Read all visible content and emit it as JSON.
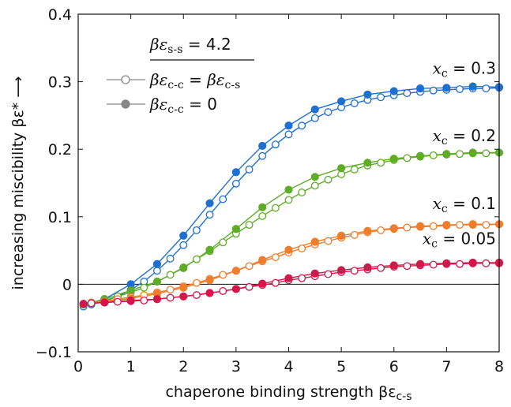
{
  "chart_data": {
    "type": "line",
    "xlabel": "chaperone binding strength βε",
    "xlabel_sub": "c-s",
    "ylabel": "increasing miscibility βε* ⟶",
    "xlim": [
      0,
      8
    ],
    "ylim": [
      -0.1,
      0.4
    ],
    "x_ticks": [
      0,
      1,
      2,
      3,
      4,
      5,
      6,
      7,
      8
    ],
    "x_tick_labels": [
      "0",
      "1",
      "2",
      "3",
      "4",
      "5",
      "6",
      "7",
      "8"
    ],
    "y_ticks": [
      -0.1,
      0,
      0.1,
      0.2,
      0.3,
      0.4
    ],
    "y_tick_labels": [
      "−0.1",
      "0",
      "0.1",
      "0.2",
      "0.3",
      "0.4"
    ],
    "reference_line_y": 0,
    "legend": {
      "position": "top-left",
      "title": "βε",
      "title_sub": "s-s",
      "title_value": " = 4.2",
      "entries": [
        {
          "marker": "open",
          "text": "βε",
          "sub": "c-c",
          "rest": " = βε",
          "sub2": "c-s"
        },
        {
          "marker": "filled",
          "text": "βε",
          "sub": "c-c",
          "rest": " = 0",
          "sub2": ""
        }
      ]
    },
    "series": [
      {
        "name": "x_c = 0.3",
        "label_var": "x",
        "label_sub": "c",
        "label_value": " = 0.3",
        "color": "#1f6fd1",
        "open": {
          "x": [
            0.1,
            0.25,
            0.5,
            0.75,
            1.0,
            1.25,
            1.5,
            1.75,
            2.0,
            2.25,
            2.5,
            2.75,
            3.0,
            3.25,
            3.5,
            3.75,
            4.0,
            4.25,
            4.5,
            4.75,
            5.0,
            5.25,
            5.5,
            5.75,
            6.0,
            6.25,
            6.5,
            6.75,
            7.0,
            7.25,
            7.5,
            7.75,
            8.0
          ],
          "y": [
            -0.033,
            -0.03,
            -0.025,
            -0.018,
            -0.008,
            0.004,
            0.02,
            0.038,
            0.058,
            0.08,
            0.103,
            0.126,
            0.149,
            0.17,
            0.19,
            0.207,
            0.222,
            0.235,
            0.246,
            0.255,
            0.262,
            0.268,
            0.273,
            0.277,
            0.28,
            0.283,
            0.285,
            0.287,
            0.288,
            0.289,
            0.29,
            0.29,
            0.291
          ]
        },
        "filled": {
          "x": [
            0.1,
            0.5,
            1.0,
            1.5,
            2.0,
            2.5,
            3.0,
            3.5,
            4.0,
            4.5,
            5.0,
            5.5,
            6.0,
            6.5,
            7.0,
            7.5,
            8.0
          ],
          "y": [
            -0.03,
            -0.022,
            0.0,
            0.03,
            0.072,
            0.12,
            0.166,
            0.205,
            0.235,
            0.259,
            0.271,
            0.281,
            0.286,
            0.29,
            0.291,
            0.293,
            0.292
          ]
        }
      },
      {
        "name": "x_c = 0.2",
        "label_var": "x",
        "label_sub": "c",
        "label_value": " = 0.2",
        "color": "#5fac27",
        "open": {
          "x": [
            0.1,
            0.25,
            0.5,
            0.75,
            1.0,
            1.25,
            1.5,
            1.75,
            2.0,
            2.25,
            2.5,
            2.75,
            3.0,
            3.25,
            3.5,
            3.75,
            4.0,
            4.25,
            4.5,
            4.75,
            5.0,
            5.25,
            5.5,
            5.75,
            6.0,
            6.25,
            6.5,
            6.75,
            7.0,
            7.25,
            7.5,
            7.75,
            8.0
          ],
          "y": [
            -0.03,
            -0.028,
            -0.024,
            -0.018,
            -0.012,
            -0.005,
            0.004,
            0.014,
            0.025,
            0.037,
            0.049,
            0.062,
            0.075,
            0.088,
            0.101,
            0.113,
            0.125,
            0.136,
            0.146,
            0.155,
            0.163,
            0.17,
            0.176,
            0.18,
            0.184,
            0.187,
            0.189,
            0.191,
            0.192,
            0.193,
            0.194,
            0.194,
            0.195
          ]
        },
        "filled": {
          "x": [
            0.1,
            0.5,
            1.0,
            1.5,
            2.0,
            2.5,
            3.0,
            3.5,
            4.0,
            4.5,
            5.0,
            5.5,
            6.0,
            6.5,
            7.0,
            7.5,
            8.0
          ],
          "y": [
            -0.03,
            -0.022,
            -0.009,
            0.004,
            0.024,
            0.051,
            0.082,
            0.114,
            0.14,
            0.159,
            0.172,
            0.18,
            0.186,
            0.19,
            0.193,
            0.195,
            0.195
          ]
        }
      },
      {
        "name": "x_c = 0.1",
        "label_var": "x",
        "label_sub": "c",
        "label_value": " = 0.1",
        "color": "#ef7d2c",
        "open": {
          "x": [
            0.1,
            0.25,
            0.5,
            0.75,
            1.0,
            1.25,
            1.5,
            1.75,
            2.0,
            2.25,
            2.5,
            2.75,
            3.0,
            3.25,
            3.5,
            3.75,
            4.0,
            4.25,
            4.5,
            4.75,
            5.0,
            5.25,
            5.5,
            5.75,
            6.0,
            6.25,
            6.5,
            6.75,
            7.0,
            7.25,
            7.5,
            7.75,
            8.0
          ],
          "y": [
            -0.029,
            -0.027,
            -0.025,
            -0.022,
            -0.019,
            -0.016,
            -0.012,
            -0.008,
            -0.003,
            0.002,
            0.008,
            0.014,
            0.02,
            0.027,
            0.034,
            0.04,
            0.047,
            0.053,
            0.059,
            0.064,
            0.069,
            0.073,
            0.077,
            0.08,
            0.082,
            0.084,
            0.085,
            0.086,
            0.087,
            0.088,
            0.088,
            0.088,
            0.089
          ]
        },
        "filled": {
          "x": [
            0.1,
            0.5,
            1.0,
            1.5,
            2.0,
            2.5,
            3.0,
            3.5,
            4.0,
            4.5,
            5.0,
            5.5,
            6.0,
            6.5,
            7.0,
            7.5,
            8.0
          ],
          "y": [
            -0.029,
            -0.026,
            -0.021,
            -0.014,
            -0.005,
            0.006,
            0.02,
            0.036,
            0.051,
            0.063,
            0.072,
            0.079,
            0.083,
            0.086,
            0.088,
            0.089,
            0.089
          ]
        }
      },
      {
        "name": "x_c = 0.05",
        "label_var": "x",
        "label_sub": "c",
        "label_value": " = 0.05",
        "color": "#d4174a",
        "open": {
          "x": [
            0.1,
            0.25,
            0.5,
            0.75,
            1.0,
            1.25,
            1.5,
            1.75,
            2.0,
            2.25,
            2.5,
            2.75,
            3.0,
            3.25,
            3.5,
            3.75,
            4.0,
            4.25,
            4.5,
            4.75,
            5.0,
            5.25,
            5.5,
            5.75,
            6.0,
            6.25,
            6.5,
            6.75,
            7.0,
            7.25,
            7.5,
            7.75,
            8.0
          ],
          "y": [
            -0.029,
            -0.028,
            -0.027,
            -0.026,
            -0.025,
            -0.024,
            -0.022,
            -0.02,
            -0.018,
            -0.016,
            -0.013,
            -0.01,
            -0.007,
            -0.004,
            -0.001,
            0.002,
            0.006,
            0.009,
            0.012,
            0.015,
            0.018,
            0.02,
            0.022,
            0.024,
            0.026,
            0.027,
            0.028,
            0.029,
            0.03,
            0.03,
            0.031,
            0.031,
            0.031
          ]
        },
        "filled": {
          "x": [
            0.1,
            0.5,
            1.0,
            1.5,
            2.0,
            2.5,
            3.0,
            3.5,
            4.0,
            4.5,
            5.0,
            5.5,
            6.0,
            6.5,
            7.0,
            7.5,
            8.0
          ],
          "y": [
            -0.029,
            -0.027,
            -0.024,
            -0.022,
            -0.018,
            -0.013,
            -0.007,
            0.001,
            0.009,
            0.016,
            0.021,
            0.025,
            0.028,
            0.03,
            0.031,
            0.032,
            0.032
          ]
        }
      }
    ]
  }
}
